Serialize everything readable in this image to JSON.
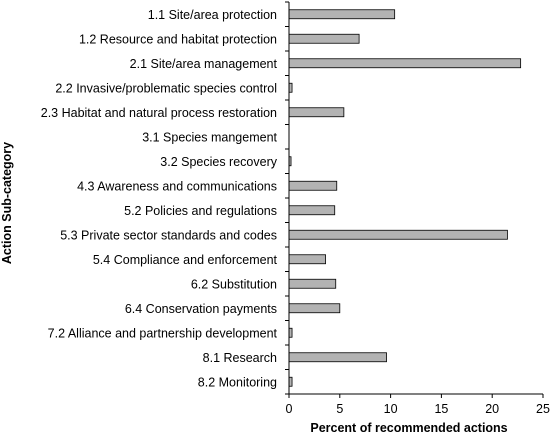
{
  "chart_data": {
    "type": "bar",
    "orientation": "horizontal",
    "xlabel": "Percent of recommended actions",
    "ylabel": "Action Sub-category",
    "xlim": [
      0,
      25
    ],
    "xticks": [
      0,
      5,
      10,
      15,
      20,
      25
    ],
    "xtick_labels": [
      "0",
      "5",
      "10",
      "15",
      "20",
      "25"
    ],
    "grid": false,
    "bar_color": "#b3b3b3",
    "bar_edge_color": "#000000",
    "categories": [
      "1.1 Site/area protection",
      "1.2 Resource and habitat protection",
      "2.1 Site/area management",
      "2.2 Invasive/problematic species control",
      "2.3 Habitat and natural process restoration",
      "3.1 Species mangement",
      "3.2 Species recovery",
      "4.3 Awareness  and communications",
      "5.2 Policies and regulations",
      "5.3 Private sector standards and codes",
      "5.4 Compliance and enforcement",
      "6.2 Substitution",
      "6.4 Conservation payments",
      "7.2 Alliance and partnership development",
      "8.1 Research",
      "8.2 Monitoring"
    ],
    "values": [
      10.4,
      6.9,
      22.8,
      0.3,
      5.4,
      0,
      0.2,
      4.7,
      4.5,
      21.5,
      3.6,
      4.6,
      5.0,
      0.3,
      9.6,
      0.3
    ]
  }
}
